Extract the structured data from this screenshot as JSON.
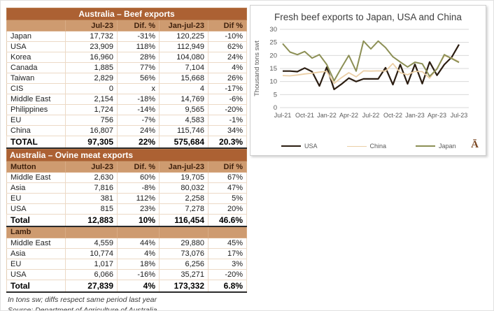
{
  "colors": {
    "band_bg": "#AC6133",
    "colhdr_bg": "#CE9B70",
    "grid": "#d9d9d9",
    "axis_text": "#595959",
    "usa_line": "#2B1D11",
    "china_line": "#EBCFA6",
    "japan_line": "#8C8F55"
  },
  "beef_table": {
    "title": "Australia – Beef exports",
    "columns": [
      "",
      "Jul-23",
      "Dif. %",
      "Jan-jul-23",
      "Dif %"
    ],
    "rows": [
      [
        "Japan",
        "17,732",
        "-31%",
        "120,225",
        "-10%"
      ],
      [
        "USA",
        "23,909",
        "118%",
        "112,949",
        "62%"
      ],
      [
        "Korea",
        "16,960",
        "28%",
        "104,080",
        "24%"
      ],
      [
        "Canada",
        "1,885",
        "77%",
        "7,104",
        "4%"
      ],
      [
        "Taiwan",
        "2,829",
        "56%",
        "15,668",
        "26%"
      ],
      [
        "CIS",
        "0",
        "x",
        "4",
        "-17%"
      ],
      [
        "Middle East",
        "2,154",
        "-18%",
        "14,769",
        "-6%"
      ],
      [
        "Philippines",
        "1,724",
        "-14%",
        "9,565",
        "-20%"
      ],
      [
        "EU",
        "756",
        "-7%",
        "4,583",
        "-1%"
      ],
      [
        "China",
        "16,807",
        "24%",
        "115,746",
        "34%"
      ]
    ],
    "total": [
      "TOTAL",
      "97,305",
      "22%",
      "575,684",
      "20.3%"
    ]
  },
  "ovine_table": {
    "title": "Australia – Ovine meat exports",
    "sections": [
      {
        "name": "Mutton",
        "columns": [
          "Jul-23",
          "Dif. %",
          "Jan-jul-23",
          "Dif %"
        ],
        "rows": [
          [
            "Middle East",
            "2,630",
            "60%",
            "19,705",
            "67%"
          ],
          [
            "Asia",
            "7,816",
            "-8%",
            "80,032",
            "47%"
          ],
          [
            "EU",
            "381",
            "112%",
            "2,258",
            "5%"
          ],
          [
            "USA",
            "815",
            "23%",
            "7,278",
            "20%"
          ]
        ],
        "total": [
          "Total",
          "12,883",
          "10%",
          "116,454",
          "46.6%"
        ]
      },
      {
        "name": "Lamb",
        "columns": null,
        "rows": [
          [
            "Middle East",
            "4,559",
            "44%",
            "29,880",
            "45%"
          ],
          [
            "Asia",
            "10,774",
            "4%",
            "73,076",
            "17%"
          ],
          [
            "EU",
            "1,017",
            "18%",
            "6,256",
            "3%"
          ],
          [
            "USA",
            "6,066",
            "-16%",
            "35,271",
            "-20%"
          ]
        ],
        "total": [
          "Total",
          "27,839",
          "4%",
          "173,332",
          "6.8%"
        ]
      }
    ]
  },
  "footnotes": [
    "In tons sw; diffs respect same period last year",
    "Source: Department of Agriculture of Australia"
  ],
  "brand_mark": "Ā",
  "chart_data": {
    "type": "line",
    "title": "Fresh beef exports to Japan, USA and China",
    "ylabel": "Thousand tons swt",
    "ylim": [
      0,
      30
    ],
    "ytick_step": 5,
    "grid": true,
    "legend_position": "bottom",
    "x": [
      "Jul-21",
      "Aug-21",
      "Sep-21",
      "Oct-21",
      "Nov-21",
      "Dec-21",
      "Jan-22",
      "Feb-22",
      "Mar-22",
      "Apr-22",
      "May-22",
      "Jun-22",
      "Jul-22",
      "Aug-22",
      "Sep-22",
      "Oct-22",
      "Nov-22",
      "Dec-22",
      "Jan-23",
      "Feb-23",
      "Mar-23",
      "Apr-23",
      "May-23",
      "Jun-23",
      "Jul-23"
    ],
    "xtick_every": 3,
    "series": [
      {
        "name": "USA",
        "color": "#2B1D11",
        "width": 2.2,
        "values": [
          14.0,
          14.0,
          13.8,
          15.2,
          13.8,
          8.3,
          15.5,
          7.0,
          9.0,
          11.3,
          10.0,
          11.0,
          11.0,
          11.0,
          15.3,
          8.8,
          16.5,
          9.1,
          16.6,
          9.2,
          17.5,
          12.4,
          16.5,
          19.3,
          24.2
        ]
      },
      {
        "name": "China",
        "color": "#EBCFA6",
        "width": 1.8,
        "values": [
          12.3,
          12.2,
          12.5,
          12.9,
          13.2,
          13.6,
          13.9,
          9.3,
          11.5,
          13.4,
          11.8,
          14.1,
          14.0,
          14.1,
          14.0,
          16.9,
          13.4,
          12.6,
          13.9,
          13.8,
          11.3,
          15.0,
          19.9,
          19.0,
          17.6
        ]
      },
      {
        "name": "Japan",
        "color": "#8C8F55",
        "width": 2.0,
        "values": [
          24.5,
          21.3,
          20.3,
          21.5,
          19.0,
          20.3,
          16.5,
          10.3,
          15.3,
          20.0,
          14.0,
          25.5,
          22.5,
          25.5,
          23.0,
          19.5,
          17.5,
          15.6,
          17.4,
          16.8,
          12.0,
          14.8,
          20.3,
          18.8,
          17.3
        ]
      }
    ]
  }
}
